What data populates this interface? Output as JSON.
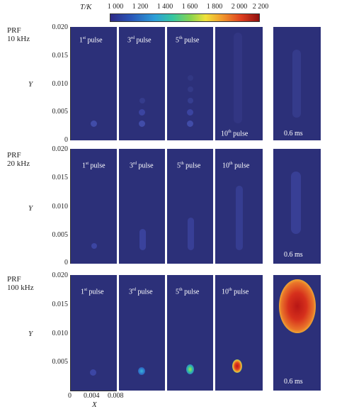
{
  "colorbar": {
    "title": "T/K",
    "ticks": [
      "1 000",
      "1 200",
      "1 400",
      "1 600",
      "1 800",
      "2 000",
      "2 200"
    ]
  },
  "rows": [
    {
      "label_top": "PRF",
      "label_bottom": "10 kHz",
      "y_label": "Y",
      "y_ticks": [
        "0.020",
        "0.015",
        "0.010",
        "0.005",
        "0"
      ],
      "panels": [
        {
          "num": "1",
          "sup": "st",
          "word": "pulse"
        },
        {
          "num": "3",
          "sup": "rd",
          "word": "pulse"
        },
        {
          "num": "5",
          "sup": "th",
          "word": "pulse"
        },
        {
          "num": "10",
          "sup": "th",
          "word": "pulse"
        },
        {
          "time": "0.6 ms"
        }
      ]
    },
    {
      "label_top": "PRF",
      "label_bottom": "20 kHz",
      "y_label": "Y",
      "y_ticks": [
        "0.020",
        "0.015",
        "0.010",
        "0.005",
        "0"
      ],
      "panels": [
        {
          "num": "1",
          "sup": "st",
          "word": "pulse"
        },
        {
          "num": "3",
          "sup": "rd",
          "word": "pulse"
        },
        {
          "num": "5",
          "sup": "th",
          "word": "pulse"
        },
        {
          "num": "10",
          "sup": "th",
          "word": "pulse"
        },
        {
          "time": "0.6 ms"
        }
      ]
    },
    {
      "label_top": "PRF",
      "label_bottom": "100 kHz",
      "y_label": "Y",
      "y_ticks": [
        "0.020",
        "0.015",
        "0.010",
        "0.005",
        "0"
      ],
      "panels": [
        {
          "num": "1",
          "sup": "st",
          "word": "pulse"
        },
        {
          "num": "3",
          "sup": "rd",
          "word": "pulse"
        },
        {
          "num": "5",
          "sup": "th",
          "word": "pulse"
        },
        {
          "num": "10",
          "sup": "th",
          "word": "pulse"
        },
        {
          "time": "0.6 ms"
        }
      ]
    }
  ],
  "x_axis": {
    "label": "X",
    "ticks": [
      "0",
      "0.004",
      "0.008"
    ]
  },
  "colors": {
    "background_field": "#2c3079",
    "kernel_glow": "#3c46a0"
  }
}
